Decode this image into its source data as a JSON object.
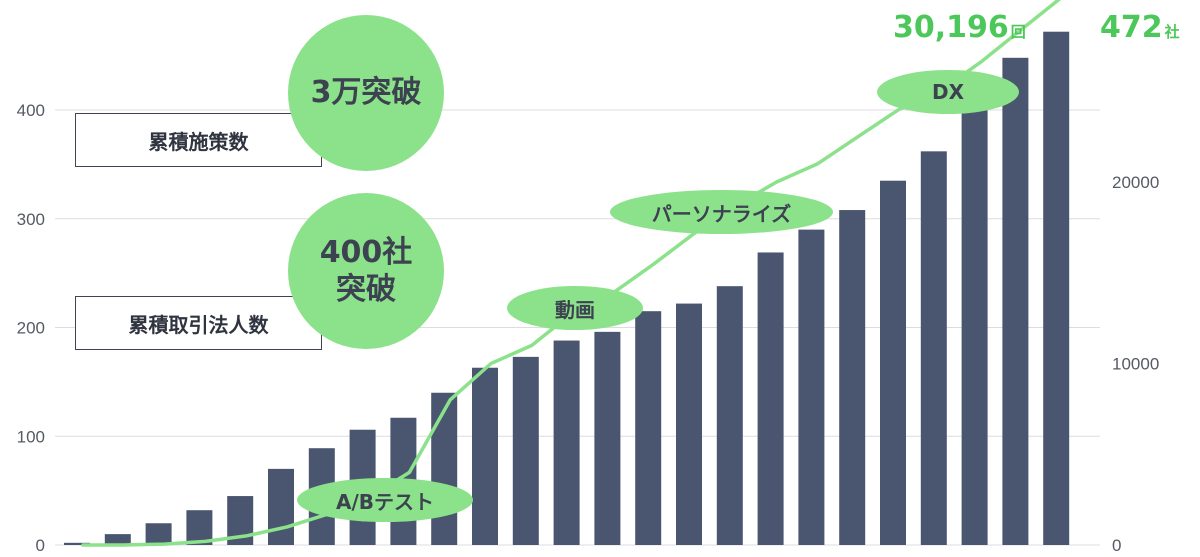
{
  "chart_data": {
    "type": "bar+line",
    "bar_series": {
      "name": "累積取引法人数",
      "color": "#4a5670",
      "values": [
        2,
        10,
        20,
        32,
        45,
        70,
        89,
        106,
        117,
        140,
        163,
        173,
        188,
        196,
        215,
        222,
        238,
        269,
        290,
        308,
        335,
        362,
        410,
        448,
        472
      ]
    },
    "line_series": {
      "name": "累積施策数",
      "color": "#8be28b",
      "values": [
        0,
        0,
        50,
        200,
        500,
        1000,
        1700,
        2600,
        4000,
        8000,
        10000,
        11000,
        12800,
        13900,
        15500,
        17200,
        18700,
        20000,
        21000,
        22500,
        24000,
        25000,
        26600,
        28400,
        30196
      ]
    },
    "y_left": {
      "ticks": [
        "0",
        "100",
        "200",
        "300",
        "400"
      ],
      "lim": [
        0,
        480
      ]
    },
    "y_right": {
      "ticks": [
        "0",
        "10000",
        "20000"
      ],
      "lim": [
        0,
        30196
      ]
    },
    "grid": true
  },
  "legend_boxes": {
    "measures": "累積施策数",
    "corporations": "累積取引法人数"
  },
  "badges": {
    "measures_milestone": "3万突破",
    "corporations_milestone_line1": "400社",
    "corporations_milestone_line2": "突破"
  },
  "annotations": {
    "ab_test": "A/Bテスト",
    "video": "動画",
    "personalize": "パーソナライズ",
    "dx": "DX"
  },
  "end_labels": {
    "measures_value": "30,196",
    "measures_unit": "回",
    "corporations_value": "472",
    "corporations_unit": "社"
  }
}
